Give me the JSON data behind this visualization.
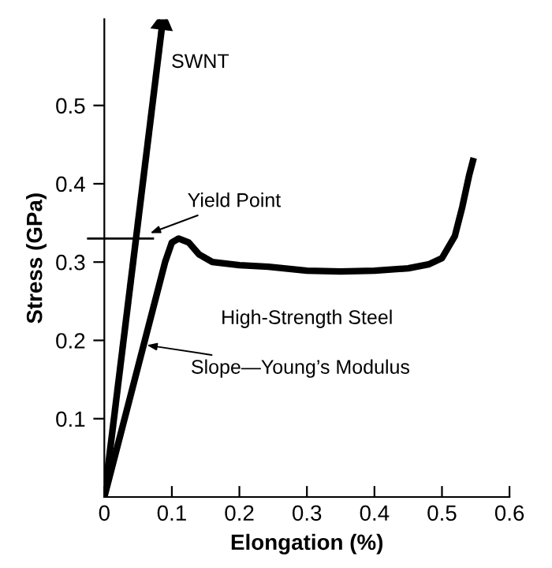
{
  "chart_data": {
    "type": "line",
    "xlabel": "Elongation (%)",
    "ylabel": "Stress (GPa)",
    "xlim": [
      0,
      0.6
    ],
    "xticks": [
      0,
      0.1,
      0.2,
      0.3,
      0.4,
      0.5,
      0.6
    ],
    "ylim": [
      0,
      0.61
    ],
    "yticks": [
      0.1,
      0.2,
      0.3,
      0.4,
      0.5
    ],
    "grid": false,
    "legend": false,
    "marker": "none",
    "line_style": "solid",
    "series": [
      {
        "name": "SWNT",
        "color": "#000000",
        "marker": "triangle",
        "x": [
          0,
          0.086
        ],
        "values": [
          0,
          0.605
        ]
      },
      {
        "name": "High-Strength Steel",
        "color": "#000000",
        "x": [
          0,
          0.09,
          0.1,
          0.11,
          0.125,
          0.14,
          0.16,
          0.2,
          0.243,
          0.3,
          0.35,
          0.4,
          0.45,
          0.48,
          0.5,
          0.519,
          0.53,
          0.54,
          0.547
        ],
        "values": [
          0,
          0.3,
          0.325,
          0.33,
          0.325,
          0.31,
          0.3,
          0.296,
          0.294,
          0.289,
          0.288,
          0.289,
          0.292,
          0.297,
          0.305,
          0.333,
          0.37,
          0.41,
          0.433
        ]
      }
    ],
    "ref_lines": [
      {
        "axis": "y",
        "value": 0.33,
        "color": "#000000"
      }
    ],
    "annotations": [
      {
        "text": "Yield Point",
        "x": 0.068,
        "y": 0.337
      },
      {
        "text": "Slope—Young’s Modulus",
        "x": 0.063,
        "y": 0.194
      }
    ]
  }
}
